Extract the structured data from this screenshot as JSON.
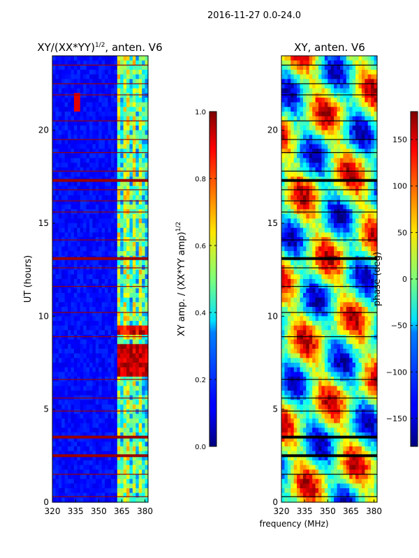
{
  "figure_title": "2016-11-27 0.0-24.0",
  "chart_data": [
    {
      "type": "heatmap",
      "title": "XY/(XX*YY)",
      "title_sup": "1/2",
      "title_suffix": ", anten. V6",
      "xlabel": "",
      "ylabel": "UT (hours)",
      "xlim": [
        320,
        382
      ],
      "ylim": [
        0,
        24
      ],
      "xticks": [
        320,
        335,
        350,
        365,
        380
      ],
      "yticks": [
        0,
        5,
        10,
        15,
        20
      ],
      "colorscale": "jet",
      "colorbar": {
        "label": "XY amp. / (XX*YY amp)",
        "label_sup": "1/2",
        "range": [
          0.0,
          1.0
        ],
        "ticks": [
          "0.0",
          "0.2",
          "0.4",
          "0.6",
          "0.8",
          "1.0"
        ]
      }
    },
    {
      "type": "heatmap",
      "title": "XY, anten. V6",
      "xlabel": "frequency (MHz)",
      "ylabel": "",
      "xlim": [
        320,
        382
      ],
      "ylim": [
        0,
        24
      ],
      "xticks": [
        320,
        335,
        350,
        365,
        380
      ],
      "yticks": [
        0,
        5,
        10,
        15,
        20
      ],
      "colorscale": "jet",
      "colorbar": {
        "label": "phase (deg)",
        "range": [
          -180,
          180
        ],
        "ticks": [
          "−150",
          "−100",
          "−50",
          "0",
          "50",
          "100",
          "150"
        ]
      }
    }
  ]
}
